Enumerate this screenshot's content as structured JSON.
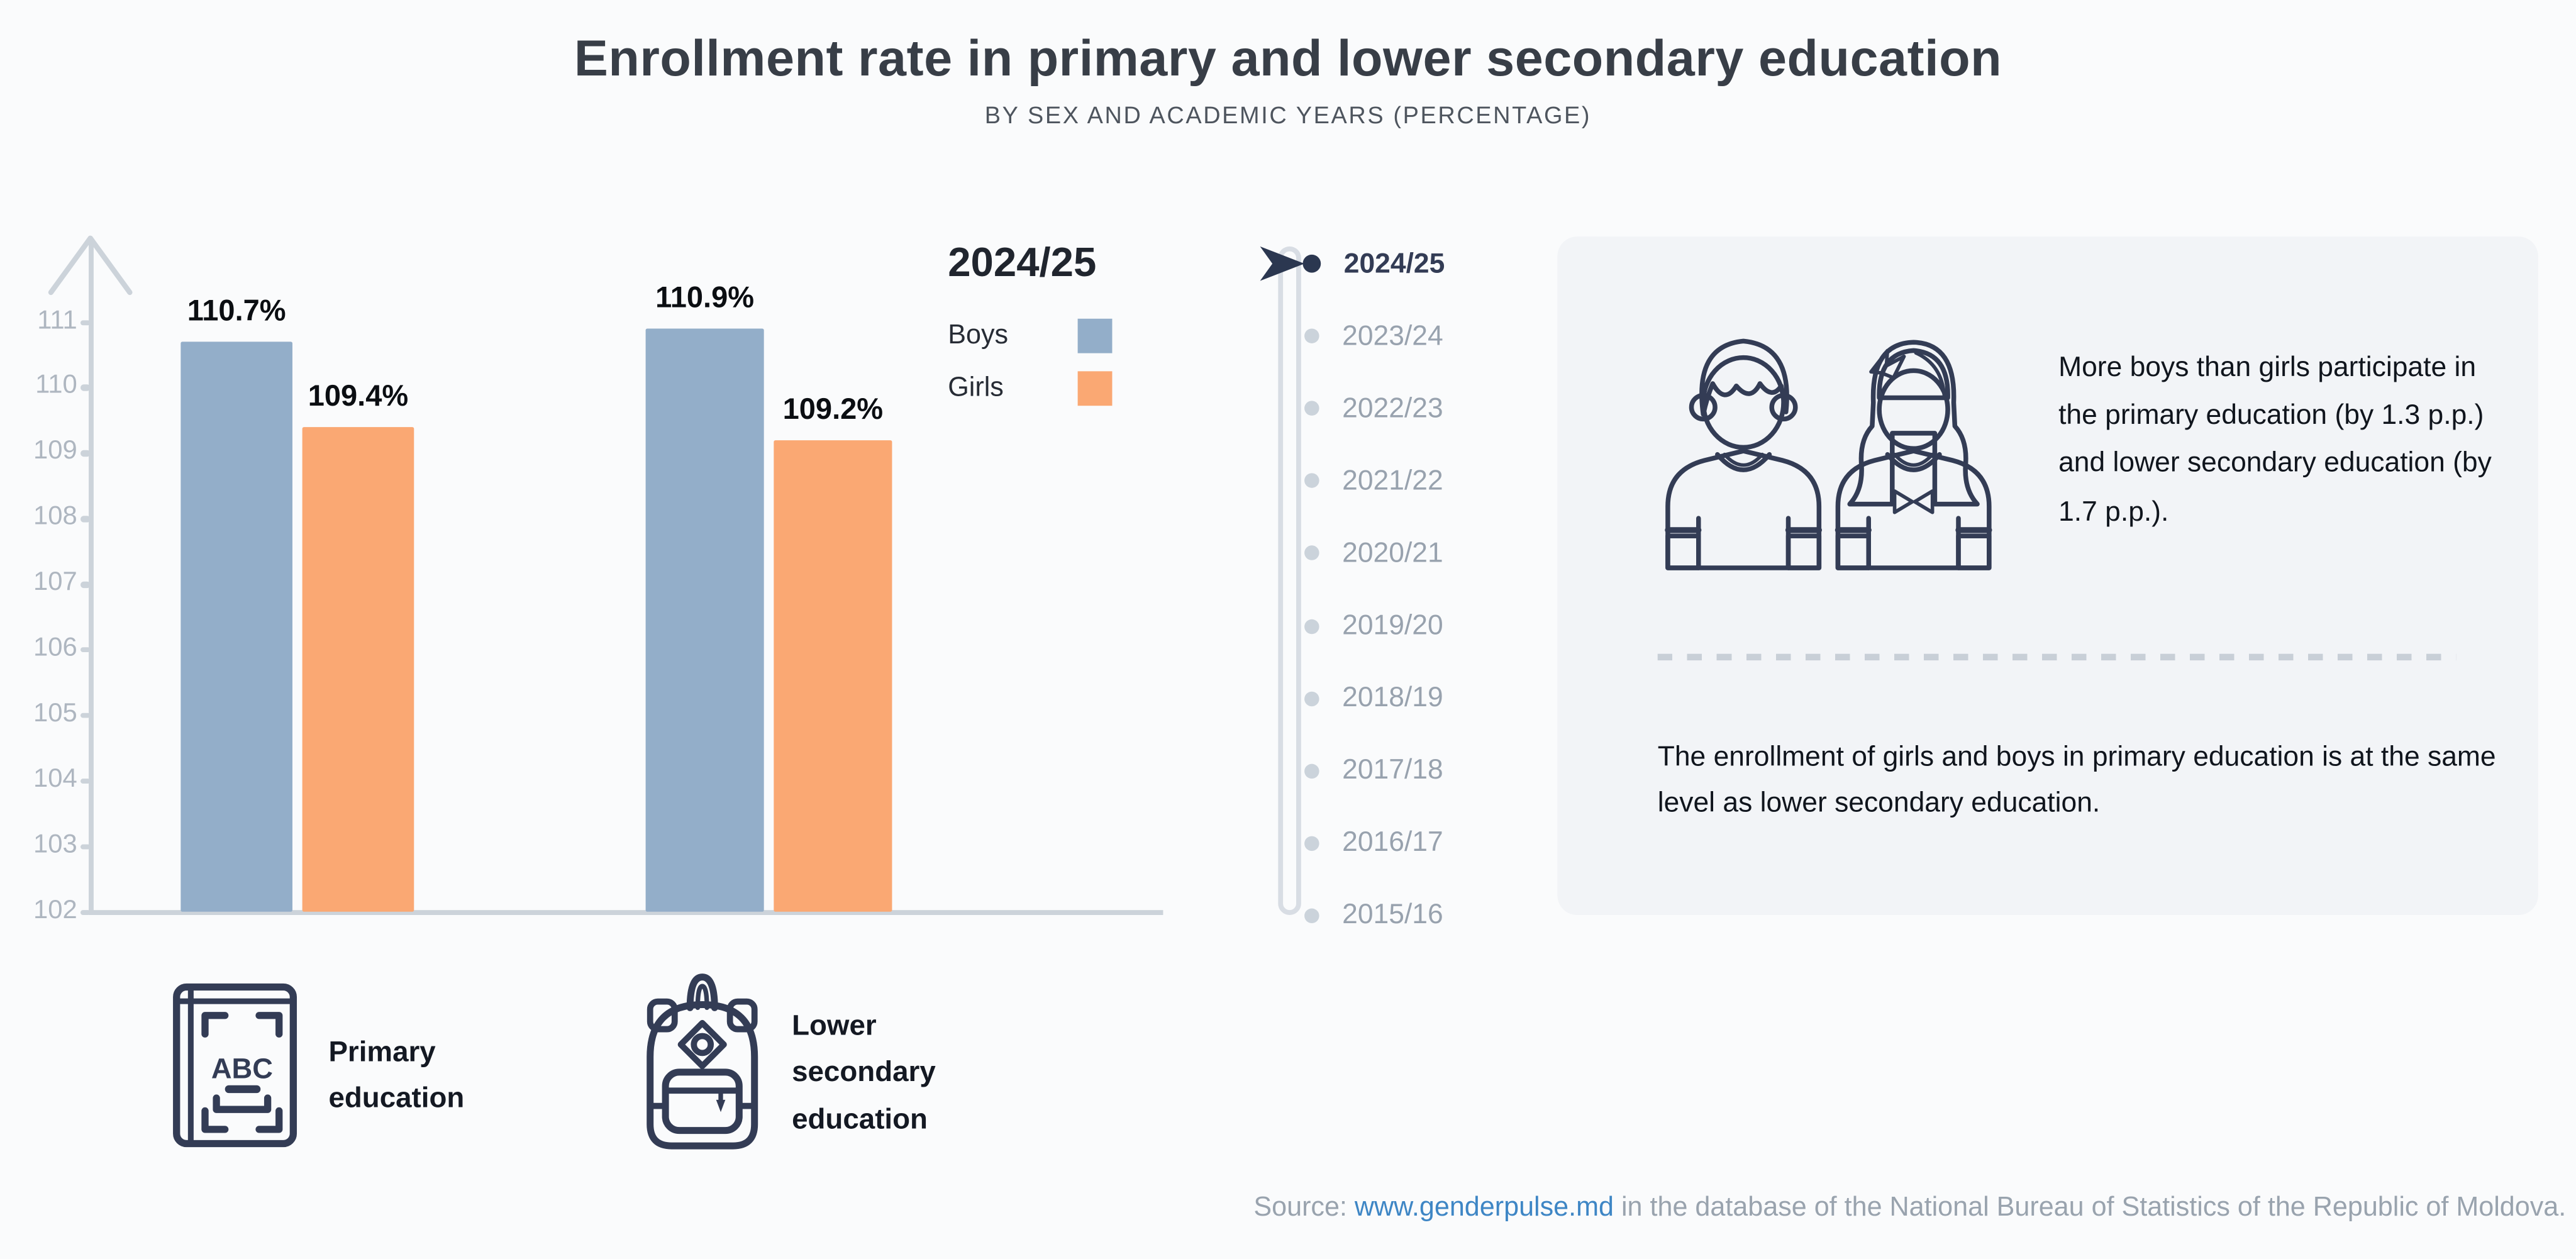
{
  "title": "Enrollment rate in primary and lower secondary education",
  "subtitle": "BY SEX AND ACADEMIC YEARS (PERCENTAGE)",
  "colors": {
    "boys": "#93aec9",
    "girls": "#faa873",
    "accent_navy": "#2b3750",
    "outline_navy": "#333c55",
    "axis": "#ccd3da",
    "tick_text": "#aeb6c0",
    "year_inactive": "#98a2ae",
    "panel_bg": "#f2f4f7",
    "page_bg": "#fafbfc",
    "title_ink": "#383e47",
    "muted": "#4e555e",
    "source_text": "#99a3ae",
    "link": "#3e86c5",
    "bow": "#fb6b4d",
    "hair_blond": "#f4c96f",
    "hair_tan": "#d5b88b"
  },
  "chart_data": {
    "type": "bar",
    "title": "2024/25",
    "categories": [
      "Primary education",
      "Lower secondary education"
    ],
    "series": [
      {
        "name": "Boys",
        "color": "#93aec9",
        "values": [
          110.7,
          110.9
        ]
      },
      {
        "name": "Girls",
        "color": "#faa873",
        "values": [
          109.4,
          109.2
        ]
      }
    ],
    "value_label_suffix": "%",
    "ylim": [
      102,
      111.5
    ],
    "yticks": [
      102,
      103,
      104,
      105,
      106,
      107,
      108,
      109,
      110,
      111
    ],
    "grid": false,
    "legend_position": "top-right-of-plot",
    "y_axis_arrow": true
  },
  "legend": {
    "title": "2024/25"
  },
  "timeline": {
    "selected": "2024/25",
    "years": [
      "2024/25",
      "2023/24",
      "2022/23",
      "2021/22",
      "2020/21",
      "2019/20",
      "2018/19",
      "2017/18",
      "2016/17",
      "2015/16"
    ]
  },
  "insights": {
    "first": "More boys than girls participate in the primary education (by 1.3 p.p.) and lower secondary education (by 1.7 p.p.).",
    "second": "The enrollment of girls and boys in primary education is at the same level as lower secondary education."
  },
  "category_legend": [
    {
      "icon": "abc-book-icon",
      "label": "Primary education"
    },
    {
      "icon": "backpack-icon",
      "label": "Lower secondary education"
    }
  ],
  "icons": {
    "book_text": "ABC"
  },
  "source": {
    "label": "Source: ",
    "link_text": "www.genderpulse.md",
    "rest": " in the database of the National Bureau of Statistics of the Republic of Moldova."
  }
}
